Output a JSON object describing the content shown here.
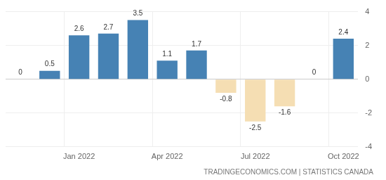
{
  "chart_data": {
    "type": "bar",
    "categories": [
      null,
      null,
      "Jan 2022",
      null,
      null,
      "Apr 2022",
      null,
      null,
      "Jul 2022",
      null,
      null,
      "Oct 2022"
    ],
    "values": [
      0,
      0.5,
      2.6,
      2.7,
      3.5,
      1.1,
      1.7,
      -0.8,
      -2.5,
      -1.6,
      0,
      2.4
    ],
    "colors": [
      "#4682b4",
      "#4682b4",
      "#4682b4",
      "#4682b4",
      "#4682b4",
      "#4682b4",
      "#4682b4",
      "#f5deb3",
      "#f5deb3",
      "#f5deb3",
      "#4682b4",
      "#4682b4"
    ],
    "ylim": [
      -4,
      4
    ],
    "yticks": [
      -4,
      -2,
      0,
      2,
      4
    ],
    "grid": true,
    "data_labels": true,
    "annotations": [
      "TRADINGECONOMICS.COM | STATISTICS CANADA"
    ]
  }
}
